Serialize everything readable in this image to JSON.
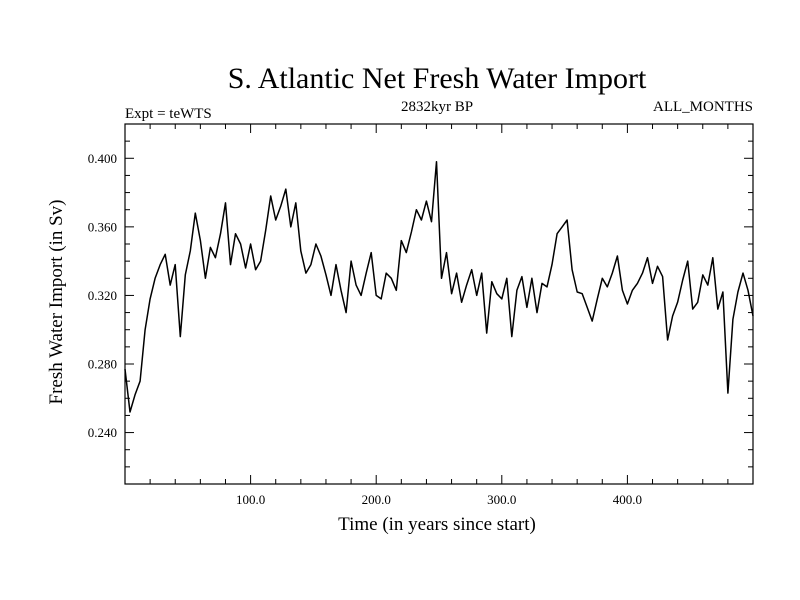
{
  "chart_data": {
    "type": "line",
    "title": "S. Atlantic Net Fresh Water Import",
    "subtitle_left": "Expt = teWTS",
    "subtitle_center": "2832kyr BP",
    "subtitle_right": "ALL_MONTHS",
    "xlabel": "Time (in years since start)",
    "ylabel": "Fresh Water Import (in Sv)",
    "xlim": [
      0,
      500
    ],
    "ylim": [
      0.21,
      0.42
    ],
    "xticks": [
      100,
      200,
      300,
      400
    ],
    "xtick_labels": [
      "100.0",
      "200.0",
      "300.0",
      "400.0"
    ],
    "yticks": [
      0.24,
      0.28,
      0.32,
      0.36,
      0.4
    ],
    "ytick_labels": [
      "0.240",
      "0.280",
      "0.320",
      "0.360",
      "0.400"
    ],
    "grid": false,
    "series": [
      {
        "name": "Fresh Water Import",
        "color": "#000000",
        "x": [
          0,
          4,
          8,
          12,
          16,
          20,
          24,
          28,
          32,
          36,
          40,
          44,
          48,
          52,
          56,
          60,
          64,
          68,
          72,
          76,
          80,
          84,
          88,
          92,
          96,
          100,
          104,
          108,
          112,
          116,
          120,
          124,
          128,
          132,
          136,
          140,
          144,
          148,
          152,
          156,
          160,
          164,
          168,
          172,
          176,
          180,
          184,
          188,
          192,
          196,
          200,
          204,
          208,
          212,
          216,
          220,
          224,
          228,
          232,
          236,
          240,
          244,
          248,
          252,
          256,
          260,
          264,
          268,
          272,
          276,
          280,
          284,
          288,
          292,
          296,
          300,
          304,
          308,
          312,
          316,
          320,
          324,
          328,
          332,
          336,
          340,
          344,
          348,
          352,
          356,
          360,
          364,
          368,
          372,
          376,
          380,
          384,
          388,
          392,
          396,
          400,
          404,
          408,
          412,
          416,
          420,
          424,
          428,
          432,
          436,
          440,
          444,
          448,
          452,
          456,
          460,
          464,
          468,
          472,
          476,
          480,
          484,
          488,
          492,
          496,
          500
        ],
        "values": [
          0.277,
          0.252,
          0.262,
          0.27,
          0.3,
          0.318,
          0.33,
          0.338,
          0.344,
          0.326,
          0.338,
          0.296,
          0.332,
          0.346,
          0.368,
          0.352,
          0.33,
          0.348,
          0.342,
          0.356,
          0.374,
          0.338,
          0.356,
          0.35,
          0.336,
          0.35,
          0.335,
          0.34,
          0.358,
          0.378,
          0.364,
          0.372,
          0.382,
          0.36,
          0.374,
          0.346,
          0.333,
          0.338,
          0.35,
          0.343,
          0.332,
          0.32,
          0.338,
          0.323,
          0.31,
          0.34,
          0.326,
          0.32,
          0.333,
          0.345,
          0.32,
          0.318,
          0.333,
          0.33,
          0.323,
          0.352,
          0.345,
          0.357,
          0.37,
          0.364,
          0.375,
          0.363,
          0.398,
          0.33,
          0.345,
          0.321,
          0.333,
          0.316,
          0.326,
          0.335,
          0.32,
          0.333,
          0.298,
          0.328,
          0.321,
          0.318,
          0.33,
          0.296,
          0.323,
          0.331,
          0.313,
          0.33,
          0.31,
          0.327,
          0.325,
          0.338,
          0.356,
          0.36,
          0.364,
          0.335,
          0.322,
          0.321,
          0.313,
          0.305,
          0.318,
          0.33,
          0.325,
          0.333,
          0.343,
          0.323,
          0.315,
          0.323,
          0.327,
          0.333,
          0.342,
          0.327,
          0.337,
          0.331,
          0.294,
          0.308,
          0.316,
          0.329,
          0.34,
          0.312,
          0.316,
          0.332,
          0.326,
          0.342,
          0.312,
          0.322,
          0.263,
          0.306,
          0.322,
          0.333,
          0.323,
          0.308
        ]
      }
    ]
  }
}
